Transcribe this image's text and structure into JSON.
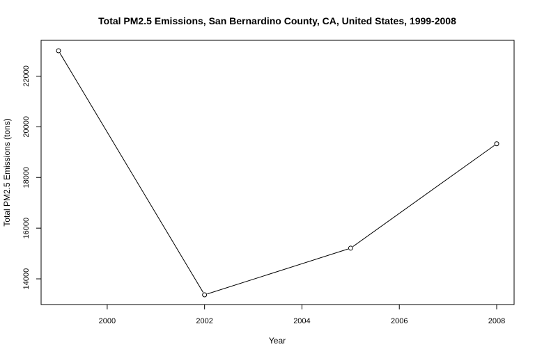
{
  "chart_data": {
    "type": "line",
    "title": "Total PM2.5 Emissions, San Bernardino County, CA, United States, 1999-2008",
    "xlabel": "Year",
    "ylabel": "Total PM2.5 Emissions (tons)",
    "x": [
      1999,
      2002,
      2005,
      2008
    ],
    "y": [
      23000,
      13370,
      15210,
      19330
    ],
    "xlim": [
      1999,
      2008
    ],
    "ylim": [
      13000,
      23200
    ],
    "x_ticks": [
      2000,
      2002,
      2004,
      2006,
      2008
    ],
    "y_ticks": [
      14000,
      16000,
      18000,
      20000,
      22000
    ],
    "grid": false,
    "point_style": "open-circle",
    "line_color": "#000000"
  }
}
